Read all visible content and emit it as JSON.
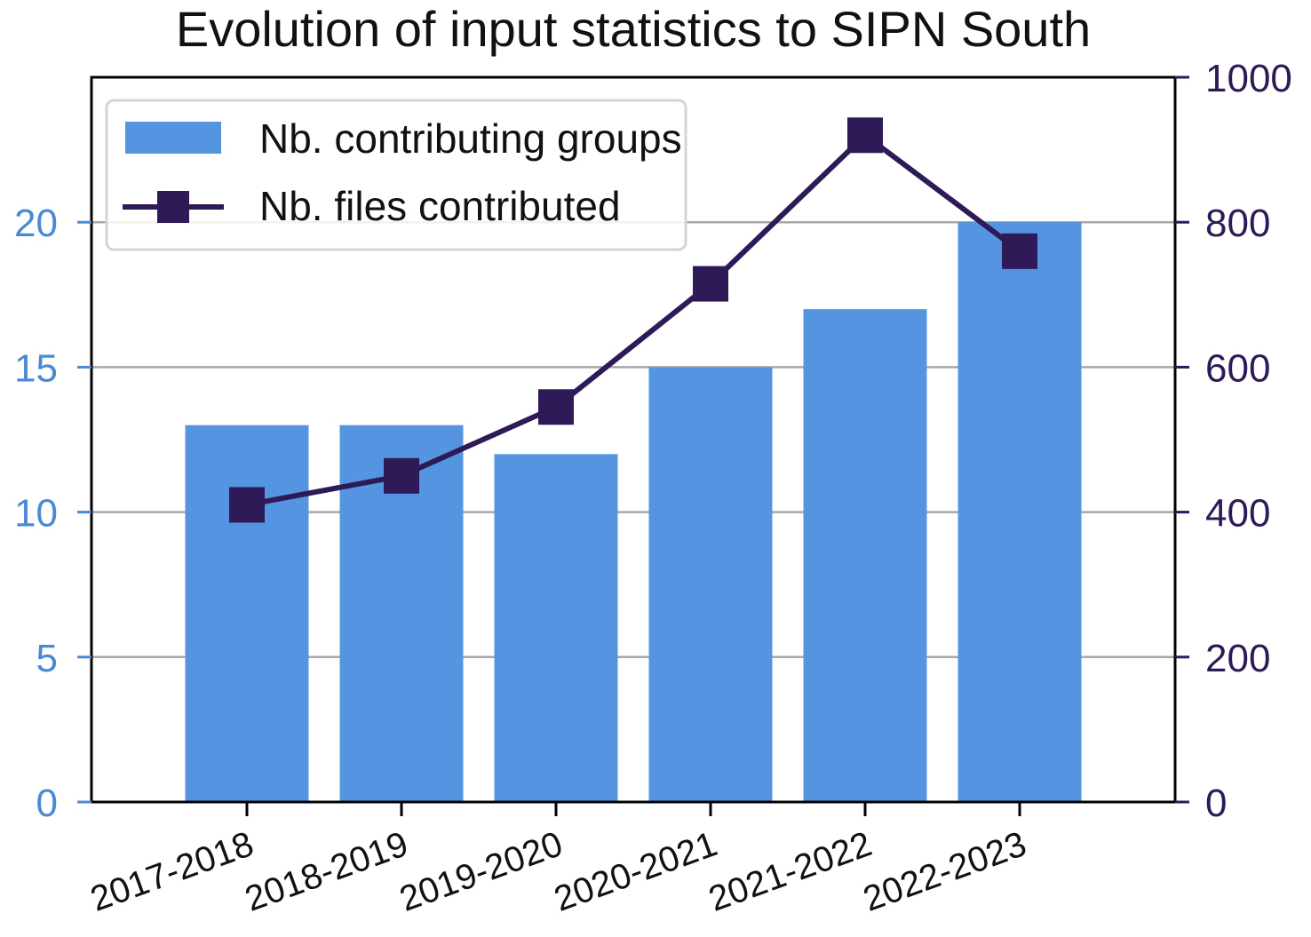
{
  "chart_data": {
    "type": "bar",
    "title": "Evolution of input statistics to SIPN South",
    "categories": [
      "2017-2018",
      "2018-2019",
      "2019-2020",
      "2020-2021",
      "2021-2022",
      "2022-2023"
    ],
    "series": [
      {
        "name": "Nb. contributing groups",
        "type": "bar",
        "axis": "left",
        "values": [
          13,
          13,
          12,
          15,
          17,
          20
        ]
      },
      {
        "name": "Nb. files contributed",
        "type": "line",
        "axis": "right",
        "marker": "square",
        "values": [
          410,
          450,
          545,
          715,
          920,
          760
        ]
      }
    ],
    "left_axis": {
      "ylim": [
        0,
        25
      ],
      "ticks": [
        "0",
        "5",
        "10",
        "15",
        "20"
      ],
      "tick_values": [
        0,
        5,
        10,
        15,
        20
      ]
    },
    "right_axis": {
      "ylim": [
        0,
        1000
      ],
      "ticks": [
        "0",
        "200",
        "400",
        "600",
        "800",
        "1000"
      ],
      "tick_values": [
        0,
        200,
        400,
        600,
        800,
        1000
      ]
    },
    "grid": true,
    "legend_position": "top-left",
    "xlabel": "",
    "ylabel": ""
  },
  "colors": {
    "bar": "#5494e0",
    "line": "#2e1a57",
    "left_axis_text": "#4a8ad4",
    "right_axis_text": "#2e1a57",
    "grid": "#a8a8a8"
  }
}
